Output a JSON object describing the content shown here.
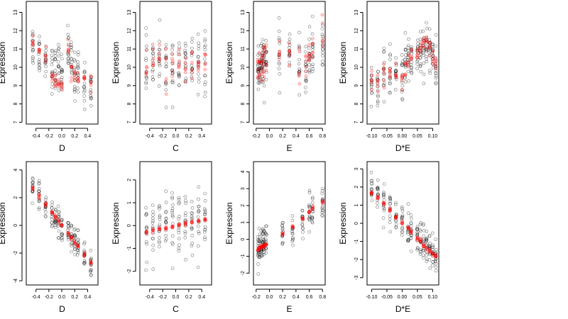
{
  "chart_data": [
    {
      "type": "scatter",
      "xlabel": "D",
      "ylabel": "Expression",
      "xlim": [
        -0.55,
        0.56
      ],
      "ylim": [
        6.9,
        13.6
      ],
      "xticks": [
        -0.4,
        -0.2,
        0.0,
        0.2,
        0.4
      ],
      "xtick_labels": [
        "-0.4",
        "-0.2",
        "0.0",
        "0.2",
        "0.4"
      ],
      "yticks": [
        7,
        8,
        9,
        10,
        11,
        12,
        13
      ],
      "ytick_labels": [
        "7",
        "8",
        "9",
        "10",
        "11",
        "12",
        "13"
      ],
      "series": [
        {
          "color": "#000000",
          "kind": "observed",
          "cloud": {
            "x_values": [
              -0.45,
              -0.35,
              -0.25,
              -0.15,
              -0.1,
              -0.05,
              0.0,
              0.1,
              0.15,
              0.2,
              0.25,
              0.35,
              0.45
            ],
            "y_centers": [
              11.2,
              10.9,
              10.5,
              10.0,
              9.8,
              10.1,
              9.7,
              11.0,
              10.2,
              9.5,
              9.8,
              9.1,
              9.0
            ],
            "y_spread": 1.1
          }
        },
        {
          "color": "#ff0000",
          "kind": "fitted",
          "cloud": {
            "x_values": [
              -0.45,
              -0.35,
              -0.25,
              -0.15,
              -0.1,
              -0.05,
              0.0,
              0.1,
              0.15,
              0.2,
              0.25,
              0.35,
              0.45
            ],
            "y_centers": [
              11.3,
              11.0,
              10.6,
              9.5,
              9.2,
              9.3,
              8.9,
              11.0,
              9.9,
              9.6,
              9.5,
              9.3,
              9.1
            ],
            "y_spread": 0.35
          }
        }
      ]
    },
    {
      "type": "scatter",
      "xlabel": "C",
      "ylabel": "Expression",
      "xlim": [
        -0.55,
        0.55
      ],
      "ylim": [
        6.9,
        13.6
      ],
      "xticks": [
        -0.4,
        -0.2,
        0.0,
        0.2,
        0.4
      ],
      "xtick_labels": [
        "-0.4",
        "-0.2",
        "0.0",
        "0.2",
        "0.4"
      ],
      "yticks": [
        7,
        8,
        9,
        10,
        11,
        12,
        13
      ],
      "ytick_labels": [
        "7",
        "8",
        "9",
        "10",
        "11",
        "12",
        "13"
      ],
      "series": [
        {
          "color": "#000000",
          "kind": "observed",
          "cloud": {
            "x_values": [
              -0.45,
              -0.35,
              -0.25,
              -0.15,
              -0.05,
              0.05,
              0.15,
              0.25,
              0.35,
              0.45
            ],
            "y_centers": [
              9.9,
              10.1,
              10.3,
              9.8,
              10.2,
              9.9,
              10.1,
              10.3,
              10.0,
              10.4
            ],
            "y_spread": 1.5
          }
        },
        {
          "color": "#ff0000",
          "kind": "fitted",
          "cloud": {
            "x_values": [
              -0.45,
              -0.35,
              -0.25,
              -0.15,
              -0.05,
              0.05,
              0.15,
              0.25,
              0.35,
              0.45
            ],
            "y_centers": [
              9.9,
              10.1,
              10.3,
              9.8,
              10.2,
              9.9,
              10.1,
              10.3,
              10.0,
              10.4
            ],
            "y_spread": 0.9
          }
        }
      ]
    },
    {
      "type": "scatter",
      "xlabel": "E",
      "ylabel": "Expression",
      "xlim": [
        -0.24,
        0.84
      ],
      "ylim": [
        6.9,
        13.6
      ],
      "xticks": [
        -0.2,
        0.0,
        0.2,
        0.4,
        0.6,
        0.8
      ],
      "xtick_labels": [
        "-0.2",
        "0.0",
        "0.2",
        "0.4",
        "0.6",
        "0.8"
      ],
      "yticks": [
        7,
        8,
        9,
        10,
        11,
        12,
        13
      ],
      "ytick_labels": [
        "7",
        "8",
        "9",
        "10",
        "11",
        "12",
        "13"
      ],
      "series": [
        {
          "color": "#000000",
          "kind": "observed",
          "cloud": {
            "x_values": [
              -0.17,
              -0.15,
              -0.12,
              -0.1,
              -0.08,
              -0.05,
              0.15,
              0.3,
              0.45,
              0.55,
              0.6,
              0.65,
              0.8
            ],
            "y_centers": [
              9.8,
              10.0,
              10.3,
              10.0,
              10.1,
              10.4,
              10.5,
              10.8,
              10.2,
              10.0,
              10.5,
              11.0,
              11.2
            ],
            "y_spread": 1.3
          }
        },
        {
          "color": "#ff0000",
          "kind": "fitted",
          "cloud": {
            "x_values": [
              -0.17,
              -0.15,
              -0.12,
              -0.1,
              -0.08,
              -0.05,
              0.15,
              0.3,
              0.45,
              0.55,
              0.6,
              0.65,
              0.8
            ],
            "y_centers": [
              9.6,
              10.0,
              10.2,
              10.3,
              10.4,
              10.5,
              10.6,
              10.7,
              10.3,
              10.2,
              10.7,
              11.0,
              11.3
            ],
            "y_spread": 0.9
          }
        }
      ]
    },
    {
      "type": "scatter",
      "xlabel": "D*E",
      "ylabel": "Expression",
      "xlim": [
        -0.115,
        0.12
      ],
      "ylim": [
        6.9,
        13.6
      ],
      "xticks": [
        -0.1,
        -0.05,
        0.0,
        0.05,
        0.1
      ],
      "xtick_labels": [
        "-0.10",
        "-0.05",
        "0.00",
        "0.05",
        "0.10"
      ],
      "yticks": [
        7,
        8,
        9,
        10,
        11,
        12,
        13
      ],
      "ytick_labels": [
        "7",
        "8",
        "9",
        "10",
        "11",
        "12",
        "13"
      ],
      "series": [
        {
          "color": "#000000",
          "kind": "observed",
          "cloud": {
            "x_values": [
              -0.1,
              -0.08,
              -0.06,
              -0.04,
              -0.02,
              0.0,
              0.01,
              0.02,
              0.03,
              0.05,
              0.06,
              0.07,
              0.08,
              0.09,
              0.1,
              0.11
            ],
            "y_centers": [
              9.0,
              9.2,
              9.5,
              9.8,
              9.5,
              9.6,
              10.2,
              10.4,
              10.5,
              10.8,
              10.9,
              11.0,
              11.2,
              11.0,
              10.6,
              10.2
            ],
            "y_spread": 1.2
          }
        },
        {
          "color": "#ff0000",
          "kind": "fitted",
          "cloud": {
            "x_values": [
              -0.1,
              -0.08,
              -0.06,
              -0.04,
              -0.02,
              0.0,
              0.01,
              0.02,
              0.03,
              0.05,
              0.06,
              0.07,
              0.08,
              0.09,
              0.1,
              0.11
            ],
            "y_centers": [
              9.2,
              9.3,
              9.6,
              9.8,
              9.7,
              9.3,
              9.9,
              10.4,
              10.6,
              10.8,
              11.0,
              11.1,
              11.3,
              11.0,
              10.4,
              10.1
            ],
            "y_spread": 0.5
          }
        }
      ]
    },
    {
      "type": "scatter",
      "xlabel": "D",
      "ylabel": "Expression",
      "xlim": [
        -0.55,
        0.56
      ],
      "ylim": [
        -4.3,
        4.6
      ],
      "xticks": [
        -0.4,
        -0.2,
        0.0,
        0.2,
        0.4
      ],
      "xtick_labels": [
        "-0.4",
        "-0.2",
        "0.0",
        "0.2",
        "0.4"
      ],
      "yticks": [
        -4,
        -2,
        0,
        2,
        4
      ],
      "ytick_labels": [
        "-4",
        "-2",
        "0",
        "2",
        "4"
      ],
      "series": [
        {
          "color": "#000000",
          "kind": "observed",
          "cloud": {
            "x_values": [
              -0.45,
              -0.35,
              -0.25,
              -0.15,
              -0.1,
              -0.05,
              0.0,
              0.1,
              0.15,
              0.2,
              0.25,
              0.35,
              0.45
            ],
            "y_centers": [
              2.6,
              2.0,
              1.4,
              0.8,
              0.5,
              0.2,
              -0.2,
              -0.6,
              -0.9,
              -1.3,
              -1.6,
              -2.1,
              -2.7
            ],
            "y_spread": 1.0
          }
        },
        {
          "color": "#ff0000",
          "kind": "fitted",
          "cloud": {
            "x_values": [
              -0.45,
              -0.35,
              -0.25,
              -0.15,
              -0.1,
              -0.05,
              0.0,
              0.1,
              0.15,
              0.2,
              0.25,
              0.35,
              0.45
            ],
            "y_centers": [
              2.7,
              2.1,
              1.5,
              0.9,
              0.6,
              0.3,
              0.0,
              -0.6,
              -0.9,
              -1.2,
              -1.5,
              -2.1,
              -2.7
            ],
            "y_spread": 0.12
          }
        }
      ]
    },
    {
      "type": "scatter",
      "xlabel": "C",
      "ylabel": "Expression",
      "xlim": [
        -0.55,
        0.55
      ],
      "ylim": [
        -2.6,
        2.8
      ],
      "xticks": [
        -0.4,
        -0.2,
        0.0,
        0.2,
        0.4
      ],
      "xtick_labels": [
        "-0.4",
        "-0.2",
        "0.0",
        "0.2",
        "0.4"
      ],
      "yticks": [
        -2,
        -1,
        0,
        1,
        2
      ],
      "ytick_labels": [
        "-2",
        "-1",
        "0",
        "1",
        "2"
      ],
      "series": [
        {
          "color": "#000000",
          "kind": "observed",
          "cloud": {
            "x_values": [
              -0.45,
              -0.35,
              -0.25,
              -0.15,
              -0.05,
              0.05,
              0.15,
              0.25,
              0.35,
              0.45
            ],
            "y_centers": [
              -0.3,
              -0.2,
              -0.2,
              -0.1,
              0.0,
              0.0,
              0.1,
              0.2,
              0.2,
              0.3
            ],
            "y_spread": 1.3
          }
        },
        {
          "color": "#ff0000",
          "kind": "fitted",
          "cloud": {
            "x_values": [
              -0.45,
              -0.35,
              -0.25,
              -0.15,
              -0.05,
              0.05,
              0.15,
              0.25,
              0.35,
              0.45
            ],
            "y_centers": [
              -0.28,
              -0.21,
              -0.15,
              -0.09,
              -0.03,
              0.03,
              0.09,
              0.15,
              0.21,
              0.28
            ],
            "y_spread": 0.06
          }
        }
      ]
    },
    {
      "type": "scatter",
      "xlabel": "E",
      "ylabel": "Expression",
      "xlim": [
        -0.24,
        0.84
      ],
      "ylim": [
        -2.7,
        4.6
      ],
      "xticks": [
        -0.2,
        0.0,
        0.2,
        0.4,
        0.6,
        0.8
      ],
      "xtick_labels": [
        "-0.2",
        "0.0",
        "0.2",
        "0.4",
        "0.6",
        "0.8"
      ],
      "yticks": [
        -2,
        -1,
        0,
        1,
        2,
        3,
        4
      ],
      "ytick_labels": [
        "-2",
        "-1",
        "0",
        "1",
        "2",
        "3",
        "4"
      ],
      "series": [
        {
          "color": "#000000",
          "kind": "observed",
          "cloud": {
            "x_values": [
              -0.17,
              -0.15,
              -0.12,
              -0.1,
              -0.08,
              -0.05,
              0.2,
              0.35,
              0.5,
              0.6,
              0.65,
              0.8
            ],
            "y_centers": [
              -0.6,
              -0.5,
              -0.4,
              -0.3,
              -0.3,
              -0.2,
              0.3,
              0.7,
              1.2,
              1.6,
              1.9,
              2.2
            ],
            "y_spread": 0.9
          }
        },
        {
          "color": "#ff0000",
          "kind": "fitted",
          "cloud": {
            "x_values": [
              -0.17,
              -0.15,
              -0.12,
              -0.1,
              -0.08,
              -0.05,
              0.2,
              0.35,
              0.5,
              0.6,
              0.65,
              0.8
            ],
            "y_centers": [
              -0.6,
              -0.55,
              -0.48,
              -0.42,
              -0.37,
              -0.3,
              0.3,
              0.7,
              1.2,
              1.6,
              1.85,
              2.2
            ],
            "y_spread": 0.1
          }
        }
      ]
    },
    {
      "type": "scatter",
      "xlabel": "D*E",
      "ylabel": "Expression",
      "xlim": [
        -0.115,
        0.12
      ],
      "ylim": [
        -3.4,
        3.4
      ],
      "xticks": [
        -0.1,
        -0.05,
        0.0,
        0.05,
        0.1
      ],
      "xtick_labels": [
        "-0.10",
        "-0.05",
        "0.00",
        "0.05",
        "0.10"
      ],
      "yticks": [
        -3,
        -2,
        -1,
        0,
        1,
        2,
        3
      ],
      "ytick_labels": [
        "-3",
        "-2",
        "-1",
        "0",
        "1",
        "2",
        "3"
      ],
      "series": [
        {
          "color": "#000000",
          "kind": "observed",
          "cloud": {
            "x_values": [
              -0.1,
              -0.08,
              -0.06,
              -0.04,
              -0.02,
              0.0,
              0.02,
              0.03,
              0.05,
              0.06,
              0.07,
              0.08,
              0.09,
              0.1,
              0.11
            ],
            "y_centers": [
              1.8,
              1.5,
              1.1,
              0.8,
              0.4,
              0.0,
              -0.3,
              -0.4,
              -0.8,
              -0.9,
              -1.1,
              -1.3,
              -1.5,
              -1.7,
              -1.8
            ],
            "y_spread": 1.0
          }
        },
        {
          "color": "#ff0000",
          "kind": "fitted",
          "cloud": {
            "x_values": [
              -0.1,
              -0.08,
              -0.06,
              -0.04,
              -0.02,
              0.0,
              0.02,
              0.03,
              0.05,
              0.06,
              0.07,
              0.08,
              0.09,
              0.1,
              0.11
            ],
            "y_centers": [
              1.7,
              1.4,
              1.1,
              0.7,
              0.35,
              0.0,
              -0.3,
              -0.5,
              -0.85,
              -1.0,
              -1.2,
              -1.4,
              -1.55,
              -1.7,
              -1.85
            ],
            "y_spread": 0.1
          }
        }
      ]
    }
  ]
}
